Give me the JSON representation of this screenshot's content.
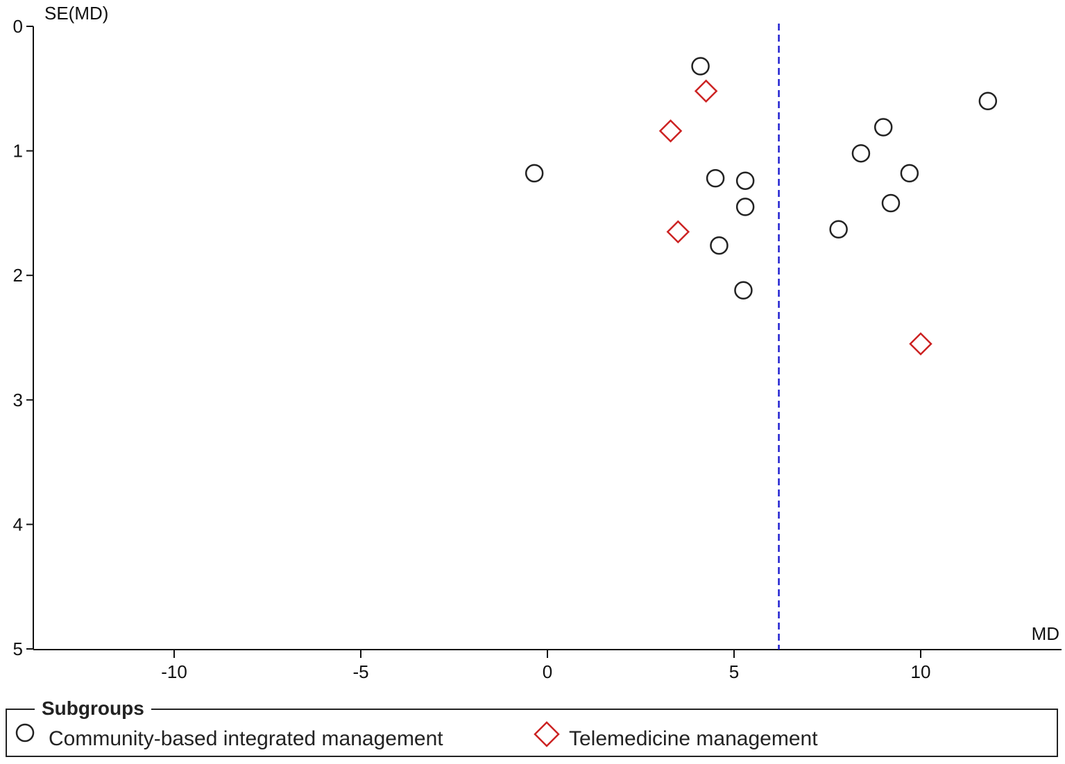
{
  "chart_data": {
    "type": "scatter",
    "xlabel": "MD",
    "ylabel": "SE(MD)",
    "xlim": [
      -13.8,
      13.8
    ],
    "ylim": [
      0,
      5
    ],
    "y_inverted": true,
    "xticks": [
      -10,
      -5,
      0,
      5,
      10
    ],
    "yticks": [
      0,
      1,
      2,
      3,
      4,
      5
    ],
    "pooled_estimate_line": {
      "x": 6.2,
      "style": "dashed",
      "color": "#1f1fd0"
    },
    "legend": {
      "title": "Subgroups",
      "placement": "bottom"
    },
    "series": [
      {
        "name": "Community-based integrated management",
        "marker": "circle",
        "color": "#222222",
        "points": [
          {
            "x": 4.1,
            "y": 0.32
          },
          {
            "x": 11.8,
            "y": 0.6
          },
          {
            "x": 9.0,
            "y": 0.81
          },
          {
            "x": 8.4,
            "y": 1.02
          },
          {
            "x": -0.35,
            "y": 1.18
          },
          {
            "x": 4.5,
            "y": 1.22
          },
          {
            "x": 5.3,
            "y": 1.24
          },
          {
            "x": 9.7,
            "y": 1.18
          },
          {
            "x": 9.2,
            "y": 1.42
          },
          {
            "x": 5.3,
            "y": 1.45
          },
          {
            "x": 7.8,
            "y": 1.63
          },
          {
            "x": 4.6,
            "y": 1.76
          },
          {
            "x": 5.25,
            "y": 2.12
          }
        ]
      },
      {
        "name": "Telemedicine management",
        "marker": "diamond",
        "color": "#cc2222",
        "points": [
          {
            "x": 4.25,
            "y": 0.52
          },
          {
            "x": 3.3,
            "y": 0.84
          },
          {
            "x": 3.5,
            "y": 1.65
          },
          {
            "x": 10.0,
            "y": 2.55
          }
        ]
      }
    ]
  }
}
